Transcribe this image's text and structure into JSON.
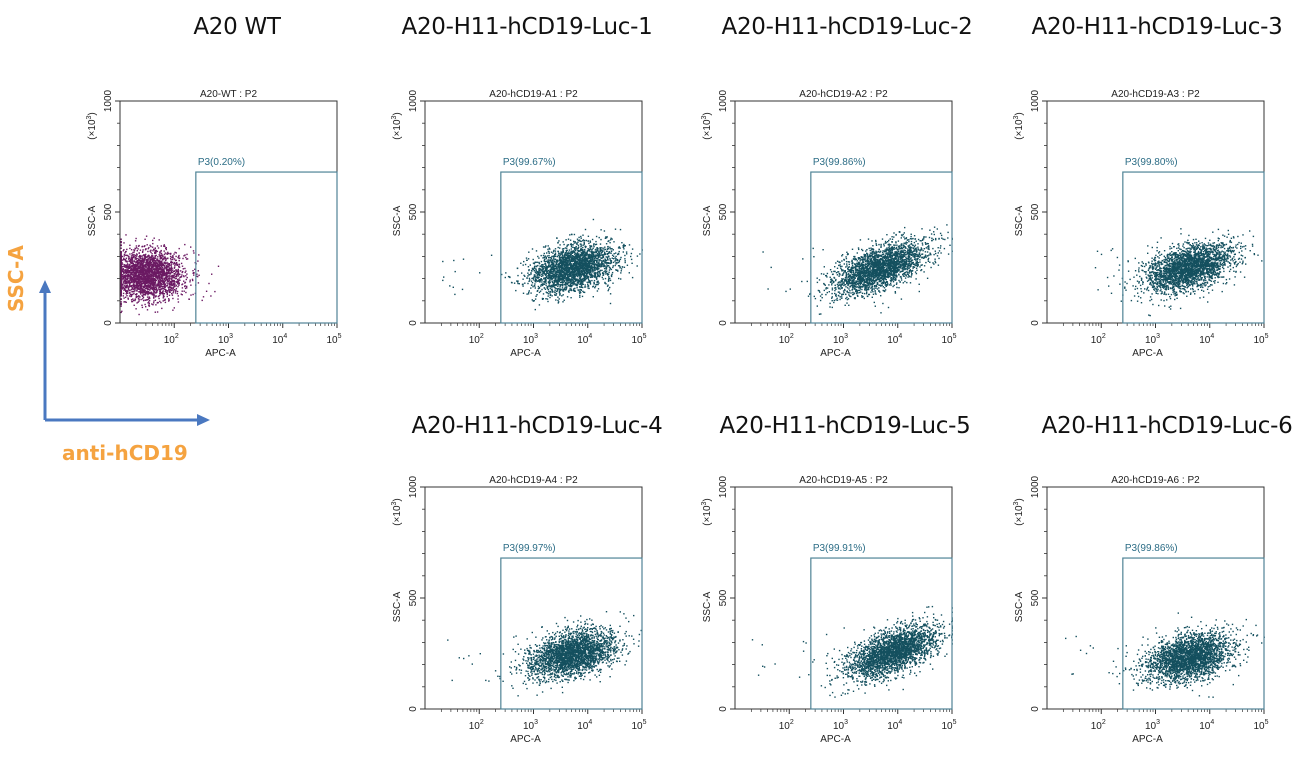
{
  "legend": {
    "y_label": "SSC-A",
    "x_label": "anti-hCD19",
    "arrow_color": "#4a78c0",
    "label_color": "#f5a340"
  },
  "axis_text": {
    "xlabel": "APC-A",
    "ylabel": "SSC-A",
    "y_multiplier": "(×10",
    "y_multiplier_exp": "3",
    "y_multiplier_close": ")",
    "y_ticks": [
      "0",
      "500",
      "1000"
    ],
    "x_ticks": [
      {
        "base": "10",
        "exp": "2"
      },
      {
        "base": "10",
        "exp": "3"
      },
      {
        "base": "10",
        "exp": "4"
      },
      {
        "base": "10",
        "exp": "5"
      }
    ]
  },
  "colors": {
    "positive_dots": "#14505f",
    "negative_dots": "#6b1a63",
    "gate": "#4f8396",
    "gate_label": "#2c6d86"
  },
  "chart_data": [
    {
      "type": "scatter",
      "panel_title": "A20 WT",
      "title": "A20-WT : P2",
      "xlabel": "APC-A",
      "ylabel": "SSC-A (×10^3)",
      "x_scale": "log",
      "xlim": [
        10,
        100000
      ],
      "ylim": [
        0,
        1000
      ],
      "gate": {
        "name": "P3",
        "label": "P3(0.20%)",
        "percent": 0.2,
        "x_min": 250,
        "x_max": 100000,
        "y_min": 0,
        "y_max": 680
      },
      "population": {
        "center_x": 30,
        "center_y": 220,
        "spread_x_decades": 0.35,
        "spread_y": 55,
        "correlation": 0.0,
        "color": "negative"
      }
    },
    {
      "type": "scatter",
      "panel_title": "A20-H11-hCD19-Luc-1",
      "title": "A20-hCD19-A1 : P2",
      "xlabel": "APC-A",
      "ylabel": "SSC-A (×10^3)",
      "x_scale": "log",
      "xlim": [
        10,
        100000
      ],
      "ylim": [
        0,
        1000
      ],
      "gate": {
        "name": "P3",
        "label": "P3(99.67%)",
        "percent": 99.67,
        "x_min": 250,
        "x_max": 100000,
        "y_min": 0,
        "y_max": 680
      },
      "population": {
        "center_x": 5000,
        "center_y": 250,
        "spread_x_decades": 0.4,
        "spread_y": 55,
        "correlation": 0.35,
        "color": "positive"
      }
    },
    {
      "type": "scatter",
      "panel_title": "A20-H11-hCD19-Luc-2",
      "title": "A20-hCD19-A2 : P2",
      "xlabel": "APC-A",
      "ylabel": "SSC-A (×10^3)",
      "x_scale": "log",
      "xlim": [
        10,
        100000
      ],
      "ylim": [
        0,
        1000
      ],
      "gate": {
        "name": "P3",
        "label": "P3(99.86%)",
        "percent": 99.86,
        "x_min": 250,
        "x_max": 100000,
        "y_min": 0,
        "y_max": 680
      },
      "population": {
        "center_x": 4500,
        "center_y": 250,
        "spread_x_decades": 0.42,
        "spread_y": 60,
        "correlation": 0.6,
        "color": "positive"
      }
    },
    {
      "type": "scatter",
      "panel_title": "A20-H11-hCD19-Luc-3",
      "title": "A20-hCD19-A3 : P2",
      "xlabel": "APC-A",
      "ylabel": "SSC-A (×10^3)",
      "x_scale": "log",
      "xlim": [
        10,
        100000
      ],
      "ylim": [
        0,
        1000
      ],
      "gate": {
        "name": "P3",
        "label": "P3(99.80%)",
        "percent": 99.8,
        "x_min": 250,
        "x_max": 100000,
        "y_min": 0,
        "y_max": 680
      },
      "population": {
        "center_x": 4000,
        "center_y": 250,
        "spread_x_decades": 0.4,
        "spread_y": 55,
        "correlation": 0.45,
        "color": "positive"
      }
    },
    {
      "type": "scatter",
      "panel_title": "A20-H11-hCD19-Luc-4",
      "title": "A20-hCD19-A4 : P2",
      "xlabel": "APC-A",
      "ylabel": "SSC-A (×10^3)",
      "x_scale": "log",
      "xlim": [
        10,
        100000
      ],
      "ylim": [
        0,
        1000
      ],
      "gate": {
        "name": "P3",
        "label": "P3(99.97%)",
        "percent": 99.97,
        "x_min": 250,
        "x_max": 100000,
        "y_min": 0,
        "y_max": 680
      },
      "population": {
        "center_x": 5000,
        "center_y": 250,
        "spread_x_decades": 0.4,
        "spread_y": 55,
        "correlation": 0.4,
        "color": "positive"
      }
    },
    {
      "type": "scatter",
      "panel_title": "A20-H11-hCD19-Luc-5",
      "title": "A20-hCD19-A5 : P2",
      "xlabel": "APC-A",
      "ylabel": "SSC-A (×10^3)",
      "x_scale": "log",
      "xlim": [
        10,
        100000
      ],
      "ylim": [
        0,
        1000
      ],
      "gate": {
        "name": "P3",
        "label": "P3(99.91%)",
        "percent": 99.91,
        "x_min": 250,
        "x_max": 100000,
        "y_min": 0,
        "y_max": 680
      },
      "population": {
        "center_x": 8000,
        "center_y": 260,
        "spread_x_decades": 0.42,
        "spread_y": 60,
        "correlation": 0.6,
        "color": "positive"
      }
    },
    {
      "type": "scatter",
      "panel_title": "A20-H11-hCD19-Luc-6",
      "title": "A20-hCD19-A6 : P2",
      "xlabel": "APC-A",
      "ylabel": "SSC-A (×10^3)",
      "x_scale": "log",
      "xlim": [
        10,
        100000
      ],
      "ylim": [
        0,
        1000
      ],
      "gate": {
        "name": "P3",
        "label": "P3(99.86%)",
        "percent": 99.86,
        "x_min": 250,
        "x_max": 100000,
        "y_min": 0,
        "y_max": 680
      },
      "population": {
        "center_x": 4000,
        "center_y": 235,
        "spread_x_decades": 0.4,
        "spread_y": 55,
        "correlation": 0.35,
        "color": "positive"
      }
    }
  ]
}
